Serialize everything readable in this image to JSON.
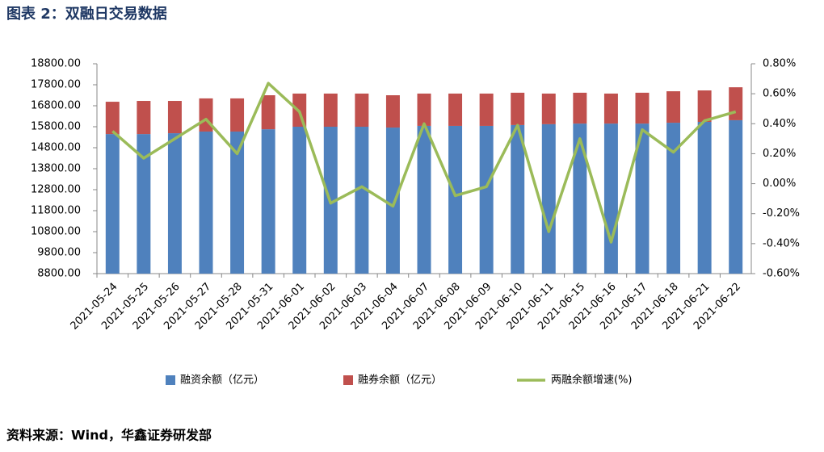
{
  "chart_data": {
    "type": "bar_line",
    "title": "图表 2：双融日交易数据",
    "source": "资料来源：Wind，华鑫证券研发部",
    "categories": [
      "2021-05-24",
      "2021-05-25",
      "2021-05-26",
      "2021-05-27",
      "2021-05-28",
      "2021-05-31",
      "2021-06-01",
      "2021-06-02",
      "2021-06-03",
      "2021-06-04",
      "2021-06-07",
      "2021-06-08",
      "2021-06-09",
      "2021-06-10",
      "2021-06-11",
      "2021-06-15",
      "2021-06-16",
      "2021-06-17",
      "2021-06-18",
      "2021-06-21",
      "2021-06-22"
    ],
    "series": [
      {
        "name": "融资余额（亿元）",
        "color": "#4f81bd",
        "kind": "bar",
        "values": [
          15450,
          15450,
          15490,
          15570,
          15570,
          15680,
          15800,
          15800,
          15800,
          15760,
          15840,
          15840,
          15840,
          15880,
          15920,
          15950,
          15950,
          15950,
          15990,
          16030,
          16110
        ]
      },
      {
        "name": "融券余额（亿元）",
        "color": "#c0504d",
        "kind": "bar",
        "values": [
          1540,
          1580,
          1540,
          1580,
          1580,
          1620,
          1580,
          1580,
          1580,
          1540,
          1540,
          1540,
          1540,
          1540,
          1460,
          1470,
          1430,
          1470,
          1500,
          1500,
          1570
        ]
      },
      {
        "name": "两融余额增速(%)",
        "color": "#9bbb59",
        "kind": "line",
        "axis": "y2",
        "values": [
          0.35,
          0.17,
          0.3,
          0.43,
          0.2,
          0.67,
          0.48,
          -0.13,
          -0.02,
          -0.15,
          0.4,
          -0.08,
          -0.02,
          0.39,
          -0.32,
          0.3,
          -0.39,
          0.36,
          0.21,
          0.42,
          0.48
        ]
      }
    ],
    "ylim": [
      8800,
      18800
    ],
    "yticks": [
      {
        "value": 8800,
        "label": "8800.00"
      },
      {
        "value": 9800,
        "label": "9800.00"
      },
      {
        "value": 10800,
        "label": "10800.00"
      },
      {
        "value": 11800,
        "label": "11800.00"
      },
      {
        "value": 12800,
        "label": "12800.00"
      },
      {
        "value": 13800,
        "label": "13800.00"
      },
      {
        "value": 14800,
        "label": "14800.00"
      },
      {
        "value": 15800,
        "label": "15800.00"
      },
      {
        "value": 16800,
        "label": "16800.00"
      },
      {
        "value": 17800,
        "label": "17800.00"
      },
      {
        "value": 18800,
        "label": "18800.00"
      }
    ],
    "y2lim": [
      -0.6,
      0.8
    ],
    "y2ticks": [
      {
        "value": -0.6,
        "label": "-0.60%"
      },
      {
        "value": -0.4,
        "label": "-0.40%"
      },
      {
        "value": -0.2,
        "label": "-0.20%"
      },
      {
        "value": 0,
        "label": "0.00%"
      },
      {
        "value": 0.2,
        "label": "0.20%"
      },
      {
        "value": 0.4,
        "label": "0.40%"
      },
      {
        "value": 0.6,
        "label": "0.60%"
      },
      {
        "value": 0.8,
        "label": "0.80%"
      }
    ],
    "stacked": true,
    "legend": "bottom"
  }
}
